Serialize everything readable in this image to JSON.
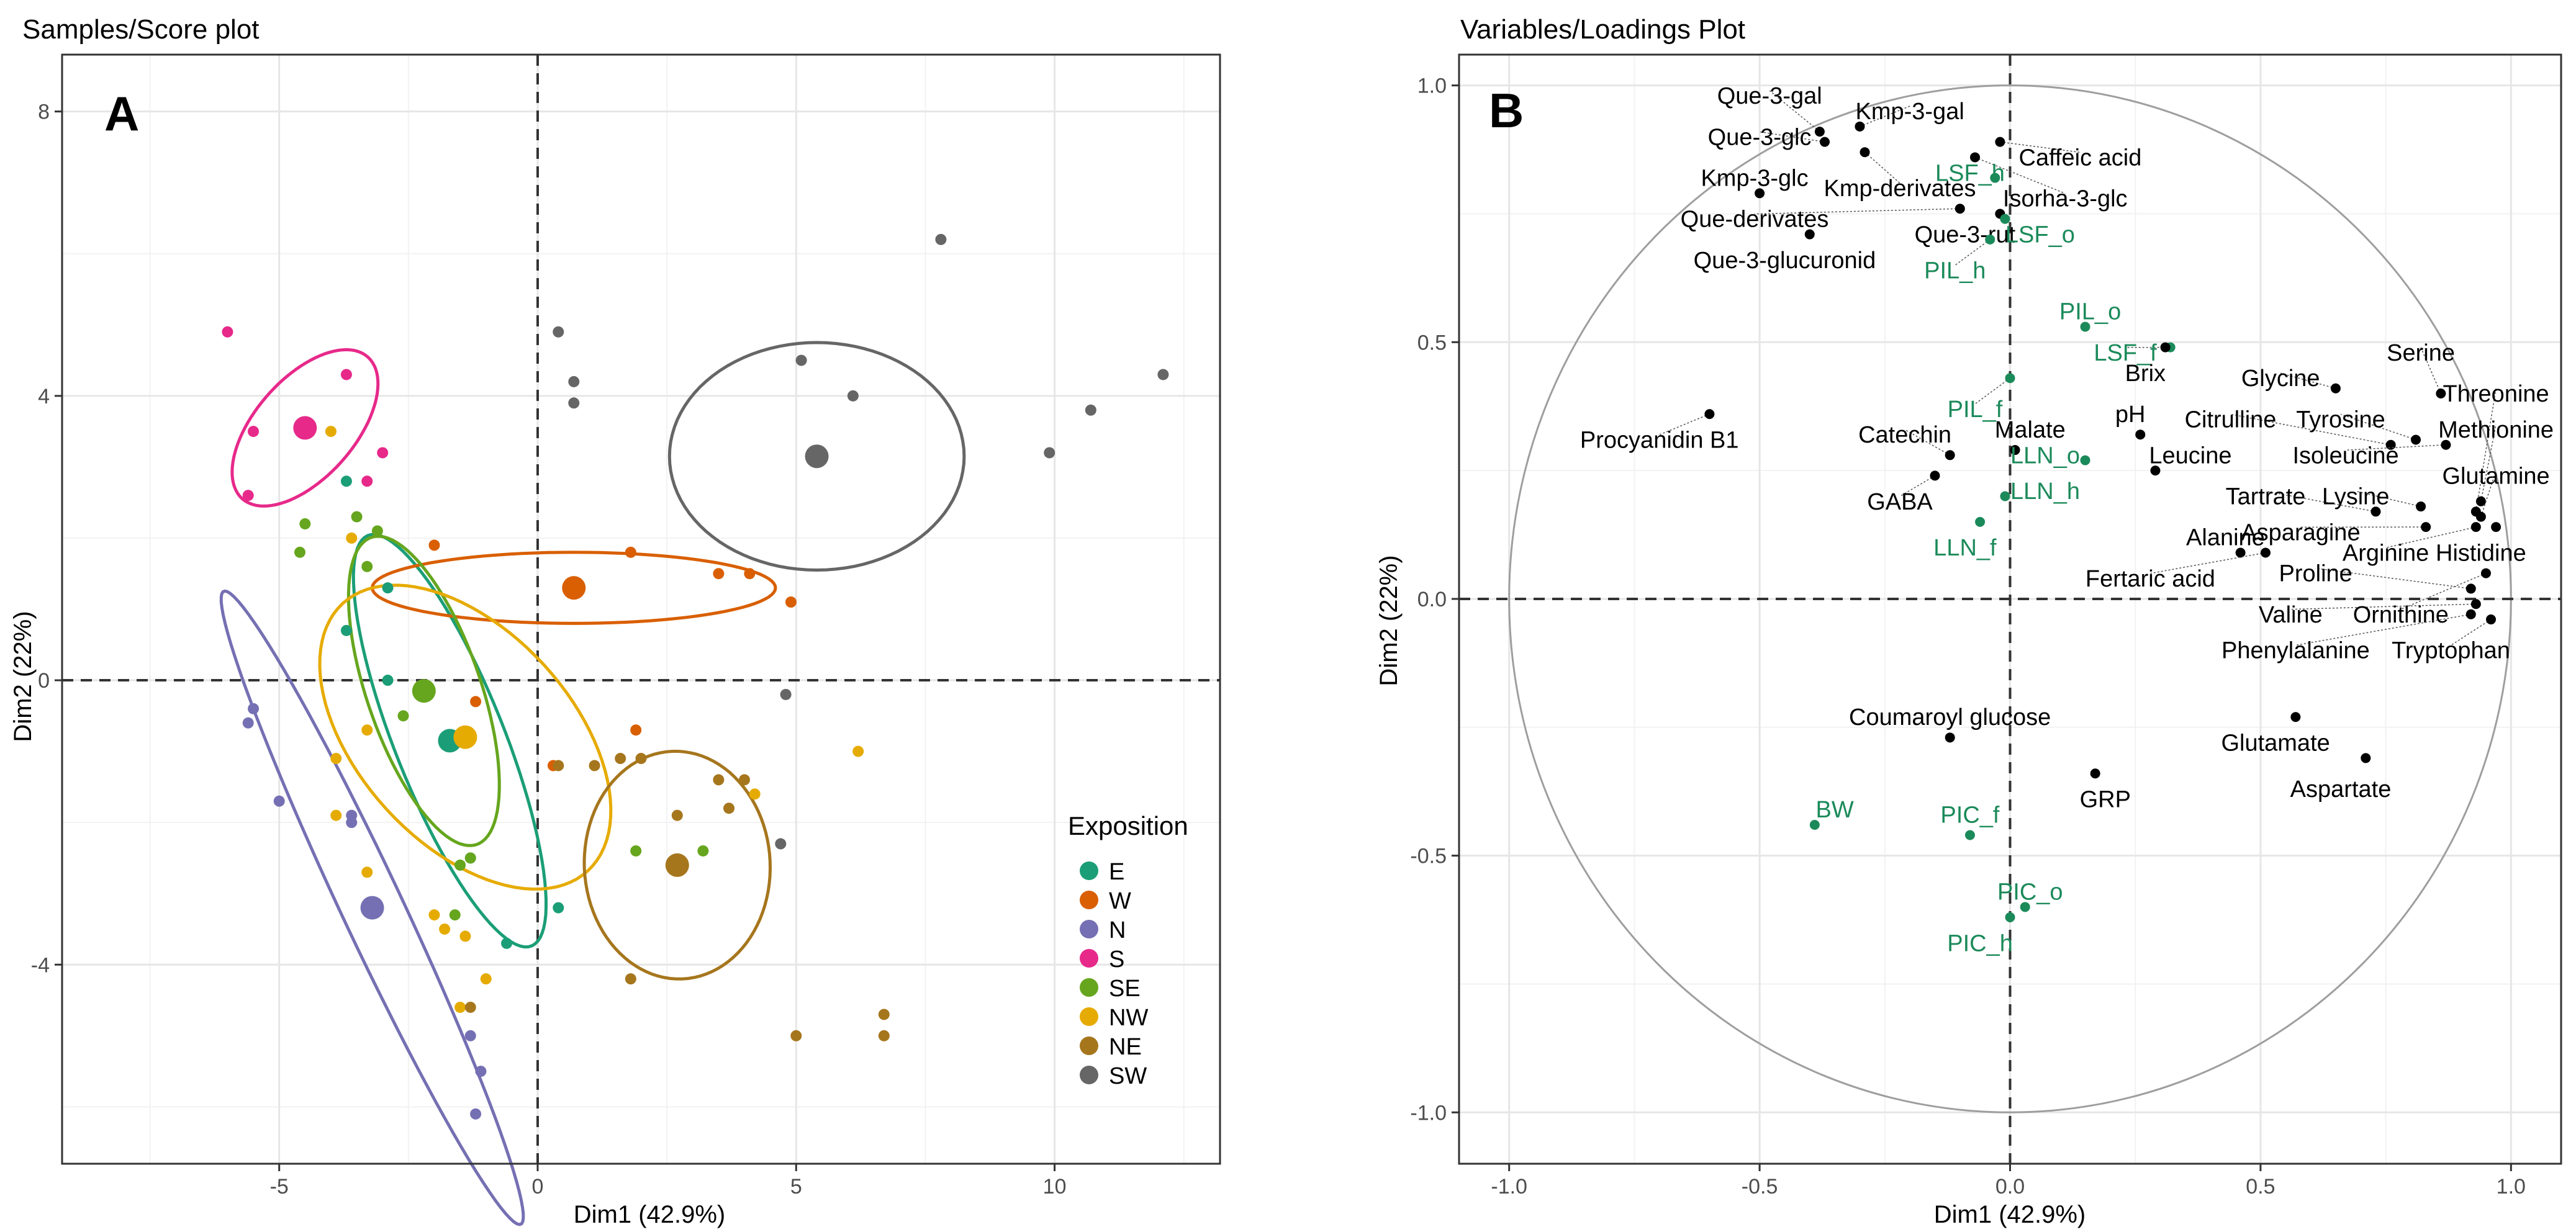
{
  "chart_data": [
    {
      "type": "scatter",
      "panel_letter": "A",
      "title": "Samples/Score plot",
      "xlabel": "Dim1 (42.9%)",
      "ylabel": "Dim2 (22%)",
      "xlim": [
        -9.2,
        13.2
      ],
      "ylim": [
        -6.8,
        8.8
      ],
      "xticks": [
        -5,
        0,
        5,
        10
      ],
      "yticks": [
        -4,
        0,
        4,
        8
      ],
      "xtick_labels": [
        "-5",
        "0",
        "5",
        "10"
      ],
      "ytick_labels": [
        "-4",
        "0",
        "4",
        "8"
      ],
      "legend": {
        "title": "Exposition",
        "position": "right"
      },
      "series": [
        {
          "name": "E",
          "color": "#1B9E77",
          "centroid": [
            -1.7,
            -0.85
          ],
          "ellipse": {
            "rx": 3.3,
            "ry": 1.0,
            "angle": -60
          },
          "points": [
            [
              -3.7,
              2.8
            ],
            [
              -2.9,
              1.3
            ],
            [
              -3.7,
              0.7
            ],
            [
              -2.9,
              0.0
            ],
            [
              -1.3,
              -2.5
            ],
            [
              -0.6,
              -3.7
            ],
            [
              0.4,
              -3.2
            ]
          ]
        },
        {
          "name": "W",
          "color": "#D95F02",
          "centroid": [
            0.7,
            1.3
          ],
          "ellipse": {
            "rx": 3.9,
            "ry": 0.5,
            "angle": 0
          },
          "points": [
            [
              -2.0,
              1.9
            ],
            [
              1.8,
              1.8
            ],
            [
              3.5,
              1.5
            ],
            [
              4.1,
              1.5
            ],
            [
              4.9,
              1.1
            ],
            [
              -1.2,
              -0.3
            ],
            [
              0.3,
              -1.2
            ],
            [
              1.9,
              -0.7
            ]
          ]
        },
        {
          "name": "N",
          "color": "#7570B3",
          "centroid": [
            -3.2,
            -3.2
          ],
          "ellipse": {
            "rx": 5.3,
            "ry": 0.55,
            "angle": -57
          },
          "points": [
            [
              -5.5,
              -0.4
            ],
            [
              -5.6,
              -0.6
            ],
            [
              -5.0,
              -1.7
            ],
            [
              -3.6,
              -1.9
            ],
            [
              -3.6,
              -2.0
            ],
            [
              -1.3,
              -5.0
            ],
            [
              -1.1,
              -5.5
            ],
            [
              -1.2,
              -6.1
            ]
          ]
        },
        {
          "name": "S",
          "color": "#E7298A",
          "centroid": [
            -4.5,
            3.55
          ],
          "ellipse": {
            "rx": 1.6,
            "ry": 0.8,
            "angle": 33
          },
          "points": [
            [
              -6.0,
              4.9
            ],
            [
              -3.7,
              4.3
            ],
            [
              -5.5,
              3.5
            ],
            [
              -5.6,
              2.6
            ],
            [
              -3.0,
              3.2
            ],
            [
              -3.3,
              2.8
            ]
          ]
        },
        {
          "name": "SE",
          "color": "#66A61E",
          "centroid": [
            -2.2,
            -0.15
          ],
          "ellipse": {
            "rx": 2.4,
            "ry": 1.05,
            "angle": -62
          },
          "points": [
            [
              -4.5,
              2.2
            ],
            [
              -4.6,
              1.8
            ],
            [
              -3.5,
              2.3
            ],
            [
              -3.1,
              2.1
            ],
            [
              -3.3,
              1.6
            ],
            [
              -2.6,
              -0.5
            ],
            [
              -1.3,
              -2.5
            ],
            [
              -1.5,
              -2.6
            ],
            [
              -1.6,
              -3.3
            ],
            [
              1.9,
              -2.4
            ],
            [
              3.2,
              -2.4
            ]
          ]
        },
        {
          "name": "NW",
          "color": "#E6AB02",
          "centroid": [
            -1.4,
            -0.8
          ],
          "ellipse": {
            "rx": 3.1,
            "ry": 1.7,
            "angle": -30
          },
          "points": [
            [
              -4.0,
              3.5
            ],
            [
              -3.6,
              2.0
            ],
            [
              -3.3,
              -0.7
            ],
            [
              -3.9,
              -1.1
            ],
            [
              -3.9,
              -1.9
            ],
            [
              -3.3,
              -2.7
            ],
            [
              -2.0,
              -3.3
            ],
            [
              -1.8,
              -3.5
            ],
            [
              -1.4,
              -3.6
            ],
            [
              -1.0,
              -4.2
            ],
            [
              -1.5,
              -4.6
            ],
            [
              6.2,
              -1.0
            ],
            [
              4.2,
              -1.6
            ]
          ]
        },
        {
          "name": "NE",
          "color": "#A6761D",
          "centroid": [
            2.7,
            -2.6
          ],
          "ellipse": {
            "rx": 1.8,
            "ry": 1.6,
            "angle": -5
          },
          "points": [
            [
              1.6,
              -1.1
            ],
            [
              2.0,
              -1.1
            ],
            [
              0.4,
              -1.2
            ],
            [
              1.1,
              -1.2
            ],
            [
              4.0,
              -1.4
            ],
            [
              3.7,
              -1.8
            ],
            [
              2.7,
              -1.9
            ],
            [
              3.5,
              -1.4
            ],
            [
              1.8,
              -4.2
            ],
            [
              5.0,
              -5.0
            ],
            [
              6.7,
              -4.7
            ],
            [
              6.7,
              -5.0
            ],
            [
              -1.3,
              -4.6
            ]
          ]
        },
        {
          "name": "SW",
          "color": "#666666",
          "centroid": [
            5.4,
            3.15
          ],
          "ellipse": {
            "rx": 2.85,
            "ry": 1.6,
            "angle": 0
          },
          "points": [
            [
              7.8,
              6.2
            ],
            [
              0.4,
              4.9
            ],
            [
              5.1,
              4.5
            ],
            [
              0.7,
              4.2
            ],
            [
              0.7,
              3.9
            ],
            [
              6.1,
              4.0
            ],
            [
              10.7,
              3.8
            ],
            [
              12.1,
              4.3
            ],
            [
              9.9,
              3.2
            ],
            [
              4.8,
              -0.2
            ],
            [
              4.7,
              -2.3
            ]
          ]
        }
      ]
    },
    {
      "type": "scatter",
      "panel_letter": "B",
      "title": "Variables/Loadings Plot",
      "xlabel": "Dim1 (42.9%)",
      "ylabel": "Dim2 (22%)",
      "xlim": [
        -1.1,
        1.1
      ],
      "ylim": [
        -1.1,
        1.06
      ],
      "xticks": [
        -1.0,
        -0.5,
        0.0,
        0.5,
        1.0
      ],
      "yticks": [
        -1.0,
        -0.5,
        0.0,
        0.5,
        1.0
      ],
      "xtick_labels": [
        "-1.0",
        "-0.5",
        "0.0",
        "0.5",
        "1.0"
      ],
      "ytick_labels": [
        "-1.0",
        "-0.5",
        "0.0",
        "0.5",
        "1.0"
      ],
      "circle_radius": 1.0,
      "colors": {
        "active": "#000000",
        "supplementary": "#1B8A5A"
      },
      "variables": [
        {
          "name": "Que-3-gal",
          "x": -0.38,
          "y": 0.91,
          "lx": -0.48,
          "ly": 0.98,
          "sup": false
        },
        {
          "name": "Kmp-3-gal",
          "x": -0.3,
          "y": 0.92,
          "lx": -0.2,
          "ly": 0.95,
          "sup": false
        },
        {
          "name": "Que-3-glc",
          "x": -0.37,
          "y": 0.89,
          "lx": -0.5,
          "ly": 0.9,
          "sup": false
        },
        {
          "name": "Kmp-3-glc",
          "x": -0.5,
          "y": 0.79,
          "lx": -0.51,
          "ly": 0.82,
          "sup": false
        },
        {
          "name": "Caffeic acid",
          "x": -0.02,
          "y": 0.89,
          "lx": 0.14,
          "ly": 0.86,
          "sup": false
        },
        {
          "name": "Kmp-derivates",
          "x": -0.29,
          "y": 0.87,
          "lx": -0.22,
          "ly": 0.8,
          "sup": false
        },
        {
          "name": "Isorha-3-glc",
          "x": -0.07,
          "y": 0.86,
          "lx": 0.11,
          "ly": 0.78,
          "sup": false
        },
        {
          "name": "Que-derivates",
          "x": -0.1,
          "y": 0.76,
          "lx": -0.51,
          "ly": 0.74,
          "sup": false
        },
        {
          "name": "Que-3-rut",
          "x": -0.02,
          "y": 0.75,
          "lx": -0.09,
          "ly": 0.71,
          "sup": false
        },
        {
          "name": "Que-3-glucuronid",
          "x": -0.4,
          "y": 0.71,
          "lx": -0.45,
          "ly": 0.66,
          "sup": false
        },
        {
          "name": "LSF_h",
          "x": -0.03,
          "y": 0.82,
          "lx": -0.08,
          "ly": 0.83,
          "sup": true
        },
        {
          "name": "LSF_o",
          "x": -0.01,
          "y": 0.74,
          "lx": 0.06,
          "ly": 0.71,
          "sup": true
        },
        {
          "name": "PIL_h",
          "x": -0.04,
          "y": 0.7,
          "lx": -0.11,
          "ly": 0.64,
          "sup": true
        },
        {
          "name": "PIL_o",
          "x": 0.15,
          "y": 0.53,
          "lx": 0.16,
          "ly": 0.56,
          "sup": true
        },
        {
          "name": "LSF_f",
          "x": 0.32,
          "y": 0.49,
          "lx": 0.23,
          "ly": 0.48,
          "sup": true
        },
        {
          "name": "Brix",
          "x": 0.31,
          "y": 0.49,
          "lx": 0.27,
          "ly": 0.44,
          "sup": false
        },
        {
          "name": "PIL_f",
          "x": 0.0,
          "y": 0.43,
          "lx": -0.07,
          "ly": 0.37,
          "sup": true
        },
        {
          "name": "Procyanidin B1",
          "x": -0.6,
          "y": 0.36,
          "lx": -0.7,
          "ly": 0.31,
          "sup": false
        },
        {
          "name": "pH",
          "x": 0.26,
          "y": 0.32,
          "lx": 0.24,
          "ly": 0.36,
          "sup": false
        },
        {
          "name": "Catechin",
          "x": -0.12,
          "y": 0.28,
          "lx": -0.21,
          "ly": 0.32,
          "sup": false
        },
        {
          "name": "Malate",
          "x": 0.01,
          "y": 0.29,
          "lx": 0.04,
          "ly": 0.33,
          "sup": false
        },
        {
          "name": "LLN_o",
          "x": 0.15,
          "y": 0.27,
          "lx": 0.07,
          "ly": 0.28,
          "sup": true
        },
        {
          "name": "Leucine",
          "x": 0.29,
          "y": 0.25,
          "lx": 0.36,
          "ly": 0.28,
          "sup": false
        },
        {
          "name": "GABA",
          "x": -0.15,
          "y": 0.24,
          "lx": -0.22,
          "ly": 0.19,
          "sup": false
        },
        {
          "name": "LLN_h",
          "x": -0.01,
          "y": 0.2,
          "lx": 0.07,
          "ly": 0.21,
          "sup": true
        },
        {
          "name": "LLN_f",
          "x": -0.06,
          "y": 0.15,
          "lx": -0.09,
          "ly": 0.1,
          "sup": true
        },
        {
          "name": "Glycine",
          "x": 0.65,
          "y": 0.41,
          "lx": 0.54,
          "ly": 0.43,
          "sup": false
        },
        {
          "name": "Serine",
          "x": 0.86,
          "y": 0.4,
          "lx": 0.82,
          "ly": 0.48,
          "sup": false
        },
        {
          "name": "Threonine",
          "x": 0.93,
          "y": 0.17,
          "lx": 0.97,
          "ly": 0.4,
          "sup": false
        },
        {
          "name": "Citrulline",
          "x": 0.76,
          "y": 0.3,
          "lx": 0.44,
          "ly": 0.35,
          "sup": false
        },
        {
          "name": "Tyrosine",
          "x": 0.81,
          "y": 0.31,
          "lx": 0.66,
          "ly": 0.35,
          "sup": false
        },
        {
          "name": "Methionine",
          "x": 0.94,
          "y": 0.19,
          "lx": 0.97,
          "ly": 0.33,
          "sup": false
        },
        {
          "name": "Isoleucine",
          "x": 0.87,
          "y": 0.3,
          "lx": 0.67,
          "ly": 0.28,
          "sup": false
        },
        {
          "name": "Glutamine",
          "x": 0.94,
          "y": 0.16,
          "lx": 0.97,
          "ly": 0.24,
          "sup": false
        },
        {
          "name": "Tartrate",
          "x": 0.73,
          "y": 0.17,
          "lx": 0.51,
          "ly": 0.2,
          "sup": false
        },
        {
          "name": "Lysine",
          "x": 0.82,
          "y": 0.18,
          "lx": 0.69,
          "ly": 0.2,
          "sup": false
        },
        {
          "name": "Alanine",
          "x": 0.46,
          "y": 0.09,
          "lx": 0.43,
          "ly": 0.12,
          "sup": false
        },
        {
          "name": "Asparagine",
          "x": 0.83,
          "y": 0.14,
          "lx": 0.58,
          "ly": 0.13,
          "sup": false
        },
        {
          "name": "Arginine",
          "x": 0.93,
          "y": 0.14,
          "lx": 0.75,
          "ly": 0.09,
          "sup": false
        },
        {
          "name": "Histidine",
          "x": 0.97,
          "y": 0.14,
          "lx": 0.94,
          "ly": 0.09,
          "sup": false
        },
        {
          "name": "Fertaric acid",
          "x": 0.51,
          "y": 0.09,
          "lx": 0.28,
          "ly": 0.04,
          "sup": false
        },
        {
          "name": "Proline",
          "x": 0.92,
          "y": 0.02,
          "lx": 0.61,
          "ly": 0.05,
          "sup": false
        },
        {
          "name": "Valine",
          "x": 0.93,
          "y": -0.01,
          "lx": 0.56,
          "ly": -0.03,
          "sup": false
        },
        {
          "name": "Ornithine",
          "x": 0.95,
          "y": 0.05,
          "lx": 0.78,
          "ly": -0.03,
          "sup": false
        },
        {
          "name": "Phenylalanine",
          "x": 0.92,
          "y": -0.03,
          "lx": 0.57,
          "ly": -0.1,
          "sup": false
        },
        {
          "name": "Tryptophan",
          "x": 0.96,
          "y": -0.04,
          "lx": 0.88,
          "ly": -0.1,
          "sup": false
        },
        {
          "name": "Coumaroyl glucose",
          "x": -0.12,
          "y": -0.27,
          "lx": -0.12,
          "ly": -0.23,
          "sup": false
        },
        {
          "name": "Glutamate",
          "x": 0.57,
          "y": -0.23,
          "lx": 0.53,
          "ly": -0.28,
          "sup": false
        },
        {
          "name": "Aspartate",
          "x": 0.71,
          "y": -0.31,
          "lx": 0.66,
          "ly": -0.37,
          "sup": false
        },
        {
          "name": "GRP",
          "x": 0.17,
          "y": -0.34,
          "lx": 0.19,
          "ly": -0.39,
          "sup": false
        },
        {
          "name": "BW",
          "x": -0.39,
          "y": -0.44,
          "lx": -0.35,
          "ly": -0.41,
          "sup": true
        },
        {
          "name": "PIC_f",
          "x": -0.08,
          "y": -0.46,
          "lx": -0.08,
          "ly": -0.42,
          "sup": true
        },
        {
          "name": "PIC_o",
          "x": 0.03,
          "y": -0.6,
          "lx": 0.04,
          "ly": -0.57,
          "sup": true
        },
        {
          "name": "PIC_h",
          "x": 0.0,
          "y": -0.62,
          "lx": -0.06,
          "ly": -0.67,
          "sup": true
        }
      ]
    }
  ]
}
